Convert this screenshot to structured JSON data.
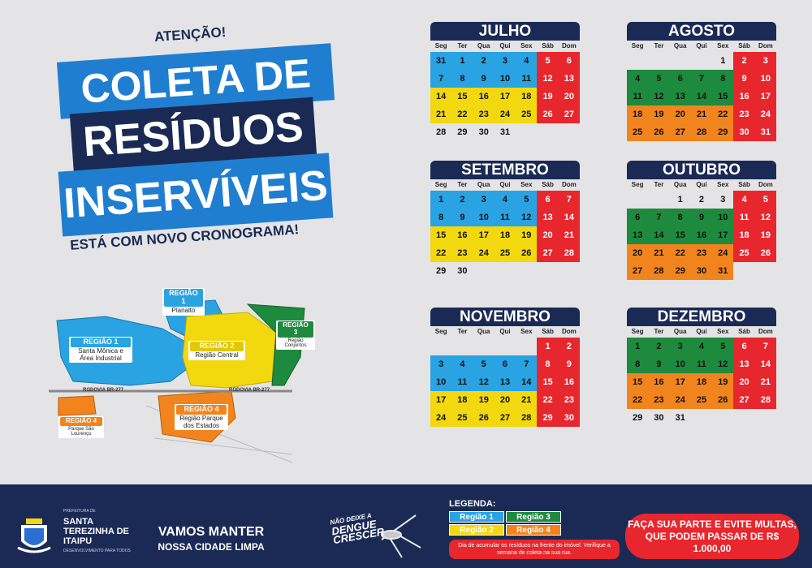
{
  "header": {
    "attention": "ATENÇÃO!",
    "title_line1": "COLETA DE",
    "title_line2": "RESÍDUOS",
    "title_line3": "INSERVÍVEIS",
    "subtitle": "ESTÁ COM NOVO CRONOGRAMA!"
  },
  "colors": {
    "region1": "#29a3e2",
    "region2": "#f2d90f",
    "region3": "#1e8a3e",
    "region4": "#f2841d",
    "weekend": "#e8262d",
    "navy": "#1b2a55",
    "banner_blue": "#1f7ed0"
  },
  "map": {
    "road1": "RODOVIA BR-277",
    "road2": "RODOVIA BR-277",
    "regions": [
      {
        "label": "REGIÃO 1",
        "name": "Santa Mônica e Área Industrial"
      },
      {
        "label": "REGIÃO 1",
        "name": "Planalto"
      },
      {
        "label": "REGIÃO 2",
        "name": "Região Central"
      },
      {
        "label": "REGIÃO 3",
        "name": "Região Conjuntos"
      },
      {
        "label": "REGIÃO 4",
        "name": "Região Parque dos Estados"
      },
      {
        "label": "REGIÃO 4",
        "name": "Parque São Lourenço"
      }
    ]
  },
  "weekdays": [
    "Seg",
    "Ter",
    "Qua",
    "Qui",
    "Sex",
    "Sáb",
    "Dom"
  ],
  "months": [
    {
      "name": "JULHO",
      "offset": 0,
      "prefix": [
        31
      ],
      "days": 31,
      "colors": {
        "r1": [
          1,
          2,
          3,
          4,
          7,
          8,
          9,
          10,
          11
        ],
        "r2": [
          14,
          15,
          16,
          17,
          18,
          21,
          22,
          23,
          24,
          25
        ],
        "w": [
          5,
          6,
          12,
          13,
          19,
          20,
          26,
          27
        ]
      }
    },
    {
      "name": "AGOSTO",
      "offset": 4,
      "prefix": [],
      "days": 31,
      "colors": {
        "r3": [
          4,
          5,
          6,
          7,
          8,
          11,
          12,
          13,
          14,
          15
        ],
        "r4": [
          18,
          19,
          20,
          21,
          22,
          25,
          26,
          27,
          28,
          29
        ],
        "w": [
          2,
          3,
          9,
          10,
          16,
          17,
          23,
          24,
          30,
          31
        ]
      }
    },
    {
      "name": "SETEMBRO",
      "offset": 0,
      "prefix": [],
      "days": 30,
      "colors": {
        "r1": [
          1,
          2,
          3,
          4,
          5,
          8,
          9,
          10,
          11,
          12
        ],
        "r2": [
          15,
          16,
          17,
          18,
          19,
          22,
          23,
          24,
          25,
          26
        ],
        "w": [
          6,
          7,
          13,
          14,
          20,
          21,
          27,
          28
        ]
      }
    },
    {
      "name": "OUTUBRO",
      "offset": 2,
      "prefix": [],
      "days": 31,
      "colors": {
        "r3": [
          6,
          7,
          8,
          9,
          10,
          13,
          14,
          15,
          16,
          17
        ],
        "r4": [
          20,
          21,
          22,
          23,
          24,
          27,
          28,
          29,
          30,
          31
        ],
        "w": [
          4,
          5,
          11,
          12,
          18,
          19,
          25,
          26
        ]
      }
    },
    {
      "name": "NOVEMBRO",
      "offset": 5,
      "prefix": [],
      "days": 30,
      "colors": {
        "r1": [
          3,
          4,
          5,
          6,
          7,
          10,
          11,
          12,
          13,
          14
        ],
        "r2": [
          17,
          18,
          19,
          20,
          21,
          24,
          25,
          26,
          27,
          28
        ],
        "w": [
          1,
          2,
          8,
          9,
          15,
          16,
          22,
          23,
          29,
          30
        ]
      }
    },
    {
      "name": "DEZEMBRO",
      "offset": 0,
      "prefix": [],
      "days": 31,
      "colors": {
        "r3": [
          1,
          2,
          3,
          4,
          5,
          8,
          9,
          10,
          11,
          12
        ],
        "r4": [
          15,
          16,
          17,
          18,
          19,
          22,
          23,
          24,
          25,
          26
        ],
        "w": [
          6,
          7,
          13,
          14,
          20,
          21,
          27,
          28
        ]
      }
    }
  ],
  "footer": {
    "muni_pre": "PREFEITURA DE",
    "muni_name": "SANTA TEREZINHA DE ITAIPU",
    "muni_post": "DESENVOLVIMENTO PARA TODOS",
    "slogan1": "VAMOS MANTER",
    "slogan2": "NOSSA CIDADE LIMPA",
    "dengue1": "NÃO DEIXE A",
    "dengue2": "DENGUE",
    "dengue3": "CRESCER",
    "legend_title": "LEGENDA:",
    "legend": [
      "Região 1",
      "Região 3",
      "Região 2",
      "Região 4"
    ],
    "legend_note": "Dia de acumular os resíduos na frente do imóvel. Verifique a semana de coleta na sua rua.",
    "warning1": "FAÇA SUA PARTE E EVITE MULTAS,",
    "warning2": "QUE PODEM PASSAR DE R$ 1.000,00"
  }
}
